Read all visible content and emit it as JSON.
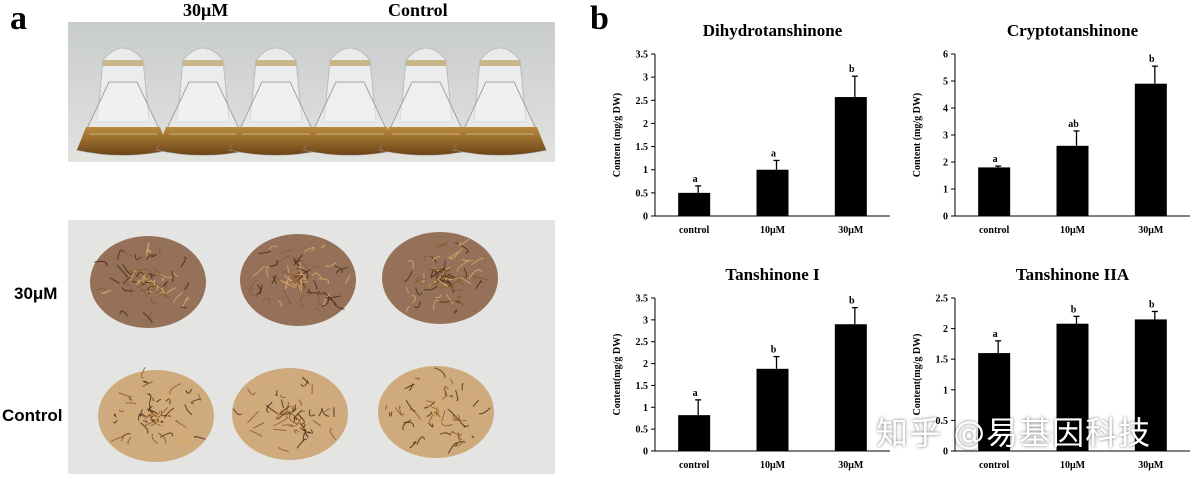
{
  "panel_a": {
    "letter": "a",
    "top_labels": [
      "30μM",
      "Control"
    ],
    "row_labels": [
      "30μM",
      "Control"
    ]
  },
  "panel_b": {
    "letter": "b"
  },
  "watermark": "知乎 @易基因科技",
  "colors": {
    "bar": "#000000",
    "flask_liquid": "#9a6a2a",
    "root_dark": "#7a4a2a",
    "root_light": "#c8955a"
  },
  "chart_data": [
    {
      "type": "bar",
      "title": "Dihydrotanshinone",
      "ylabel": "Content (mg/g DW)",
      "categories": [
        "control",
        "10μM",
        "30μM"
      ],
      "values": [
        0.5,
        1.0,
        2.57
      ],
      "errors": [
        0.15,
        0.2,
        0.45
      ],
      "letters": [
        "a",
        "a",
        "b"
      ],
      "ylim": [
        0,
        3.5
      ],
      "yticks": [
        0,
        0.5,
        1,
        1.5,
        2,
        2.5,
        3,
        3.5
      ],
      "ytick_labels": [
        "0",
        "0.5",
        "1",
        "1.5",
        "2",
        "2.5",
        "3",
        "3.5"
      ]
    },
    {
      "type": "bar",
      "title": "Cryptotanshinone",
      "ylabel": "Content (mg/g DW)",
      "categories": [
        "control",
        "10μM",
        "30μM"
      ],
      "values": [
        1.8,
        2.6,
        4.9
      ],
      "errors": [
        0.05,
        0.55,
        0.65
      ],
      "letters": [
        "a",
        "ab",
        "b"
      ],
      "ylim": [
        0,
        6
      ],
      "yticks": [
        0,
        1,
        2,
        3,
        4,
        5,
        6
      ],
      "ytick_labels": [
        "0",
        "1",
        "2",
        "3",
        "4",
        "5",
        "6"
      ]
    },
    {
      "type": "bar",
      "title": "Tanshinone I",
      "ylabel": "Content(mg/g DW)",
      "categories": [
        "control",
        "10μM",
        "30μM"
      ],
      "values": [
        0.82,
        1.88,
        2.9
      ],
      "errors": [
        0.35,
        0.28,
        0.38
      ],
      "letters": [
        "a",
        "b",
        "b"
      ],
      "ylim": [
        0,
        3.5
      ],
      "yticks": [
        0,
        0.5,
        1,
        1.5,
        2,
        2.5,
        3,
        3.5
      ],
      "ytick_labels": [
        "0",
        "0.5",
        "1",
        "1.5",
        "2",
        "2.5",
        "3",
        "3.5"
      ]
    },
    {
      "type": "bar",
      "title": "Tanshinone IIA",
      "ylabel": "Content(mg/g DW)",
      "categories": [
        "control",
        "10μM",
        "30μM"
      ],
      "values": [
        1.6,
        2.08,
        2.15
      ],
      "errors": [
        0.2,
        0.12,
        0.13
      ],
      "letters": [
        "a",
        "b",
        "b"
      ],
      "ylim": [
        0,
        2.5
      ],
      "yticks": [
        0,
        0.5,
        1,
        1.5,
        2,
        2.5
      ],
      "ytick_labels": [
        "0",
        "0.5",
        "1",
        "1.5",
        "2",
        "2.5"
      ]
    }
  ]
}
